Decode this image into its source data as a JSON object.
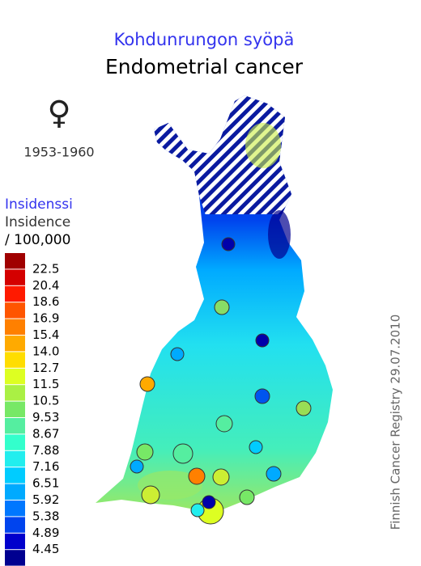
{
  "header": {
    "title_fi": "Kohdunrungon syöpä",
    "title_en": "Endometrial cancer",
    "symbol": "♀",
    "period": "1953-1960"
  },
  "legend": {
    "title_fi": "Insidenssi",
    "title_en": "Insidence",
    "unit": "/ 100,000",
    "colors": [
      "#a00000",
      "#d40000",
      "#ff1a00",
      "#ff5500",
      "#ff8000",
      "#ffaa00",
      "#ffdd00",
      "#ddff22",
      "#aaf044",
      "#77e866",
      "#55eea0",
      "#33ffcc",
      "#22eeee",
      "#00ccff",
      "#00aaff",
      "#0077ff",
      "#0044ee",
      "#0000cc",
      "#000090"
    ],
    "labels": [
      "22.5",
      "20.4",
      "18.6",
      "16.9",
      "15.4",
      "14.0",
      "12.7",
      "11.5",
      "10.5",
      "9.53",
      "8.67",
      "7.88",
      "7.16",
      "6.51",
      "5.92",
      "5.38",
      "4.89",
      "4.45"
    ]
  },
  "credit": "Finnish Cancer Registry 29.07.2010"
}
